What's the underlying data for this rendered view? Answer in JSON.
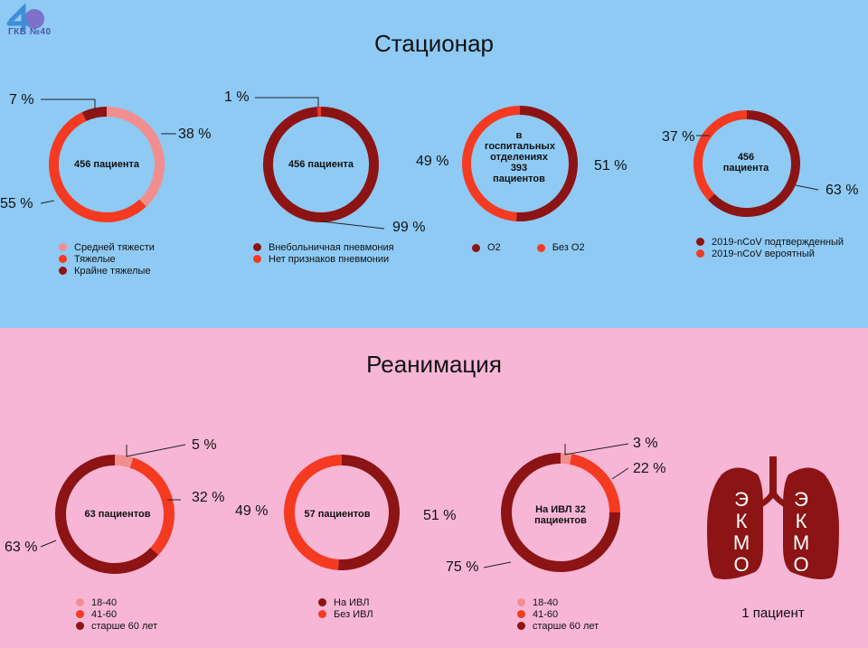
{
  "logo": {
    "text": "ГКБ №40",
    "color": "#6a4fb6"
  },
  "sections": {
    "top_title": "Стационар",
    "bottom_title": "Реанимация"
  },
  "colors": {
    "light": "#f28e8e",
    "medium": "#f53a22",
    "dark": "#8c1414",
    "top_bg": "#8ecaf4",
    "bottom_bg": "#f8b6d6"
  },
  "ekmo": {
    "letters": [
      "Э",
      "К",
      "М",
      "О"
    ],
    "caption": "1 пациент",
    "lung_color": "#8c1414"
  },
  "chart_data": [
    {
      "type": "pie",
      "center": "456 пациента",
      "categories": [
        "Средней тяжести",
        "Тяжелые",
        "Крайне тяжелые"
      ],
      "values": [
        38,
        55,
        7
      ],
      "labels": [
        "38 %",
        "55 %",
        "7 %"
      ],
      "colors": [
        "#f28e8e",
        "#f53a22",
        "#8c1414"
      ]
    },
    {
      "type": "pie",
      "center": "456 пациента",
      "categories": [
        "Внебольничная пневмония",
        "Нет признаков пневмонии"
      ],
      "values": [
        99,
        1
      ],
      "labels": [
        "99 %",
        "1 %"
      ],
      "colors": [
        "#8c1414",
        "#f53a22"
      ]
    },
    {
      "type": "pie",
      "center": "в госпитальных отделениях 393 пациентов",
      "categories": [
        "О2",
        "Без О2"
      ],
      "values": [
        51,
        49
      ],
      "labels": [
        "51 %",
        "49 %"
      ],
      "colors": [
        "#8c1414",
        "#f53a22"
      ]
    },
    {
      "type": "pie",
      "center": "456 пациента",
      "categories": [
        "2019-nCoV подтвержденный",
        "2019-nCoV вероятный"
      ],
      "values": [
        63,
        37
      ],
      "labels": [
        "63 %",
        "37 %"
      ],
      "colors": [
        "#8c1414",
        "#f53a22"
      ]
    },
    {
      "type": "pie",
      "center": "63 пациентов",
      "categories": [
        "18-40",
        "41-60",
        "старше 60 лет"
      ],
      "values": [
        5,
        32,
        63
      ],
      "labels": [
        "5 %",
        "32 %",
        "63 %"
      ],
      "colors": [
        "#f28e8e",
        "#f53a22",
        "#8c1414"
      ]
    },
    {
      "type": "pie",
      "center": "57 пациентов",
      "categories": [
        "На ИВЛ",
        "Без ИВЛ"
      ],
      "values": [
        51,
        49
      ],
      "labels": [
        "51 %",
        "49 %"
      ],
      "colors": [
        "#8c1414",
        "#f53a22"
      ]
    },
    {
      "type": "pie",
      "center": "На ИВЛ 32 пациентов",
      "categories": [
        "18-40",
        "41-60",
        "старше 60 лет"
      ],
      "values": [
        3,
        22,
        75
      ],
      "labels": [
        "3 %",
        "22 %",
        "75 %"
      ],
      "colors": [
        "#f28e8e",
        "#f53a22",
        "#8c1414"
      ]
    }
  ]
}
